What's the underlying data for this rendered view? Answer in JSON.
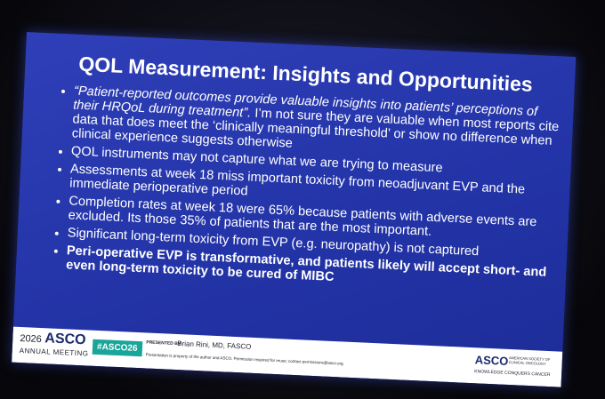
{
  "slide": {
    "title": "QOL Measurement: Insights and Opportunities",
    "bullets": [
      {
        "quote": "“Patient-reported outcomes provide valuable insights into patients’ perceptions of their HRQoL during treatment”.",
        "text": " I’m not sure they are valuable when most reports cite data that does meet the ‘clinically meaningful threshold’ or show no difference when clinical experience suggests otherwise"
      },
      {
        "text": "QOL instruments may not capture what we are trying to measure"
      },
      {
        "text": "Assessments at week 18 miss important toxicity from neoadjuvant EVP and the immediate perioperative period"
      },
      {
        "text": "Completion rates at week 18 were 65% because patients with adverse events are excluded. Its those 35% of patients that are the most important."
      },
      {
        "text": "Significant long-term toxicity from EVP (e.g. neuropathy) is not captured"
      },
      {
        "bold": "Peri-operative EVP is transformative, and patients likely will accept short- and even long-term toxicity to be cured of MIBC"
      }
    ],
    "footer": {
      "year": "2026",
      "brand": "ASCO",
      "meeting": "ANNUAL MEETING",
      "hashtag": "#ASCO26",
      "presented_by": "PRESENTED BY:",
      "presenter": "Brian Rini, MD, FASCO",
      "notice": "Presentation is property of the author and ASCO. Permission required for reuse; contact permissions@asco.org.",
      "logo": "ASCO",
      "society": "AMERICAN SOCIETY OF CLINICAL ONCOLOGY",
      "tagline": "KNOWLEDGE CONQUERS CANCER"
    }
  }
}
